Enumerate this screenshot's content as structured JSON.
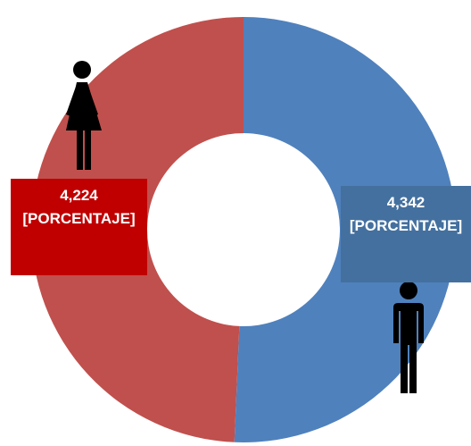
{
  "chart_data": {
    "type": "donut",
    "categories": [
      "Hombres",
      "Mujeres"
    ],
    "values": [
      4342,
      4224
    ],
    "value_labels": [
      "4,342",
      "4,224"
    ],
    "percent_labels": [
      "[PORCENTAJE]",
      "[PORCENTAJE]"
    ],
    "colors": [
      "#4f81bd",
      "#c0504d"
    ],
    "label_box_colors": [
      "#44709f",
      "#c00000"
    ]
  }
}
